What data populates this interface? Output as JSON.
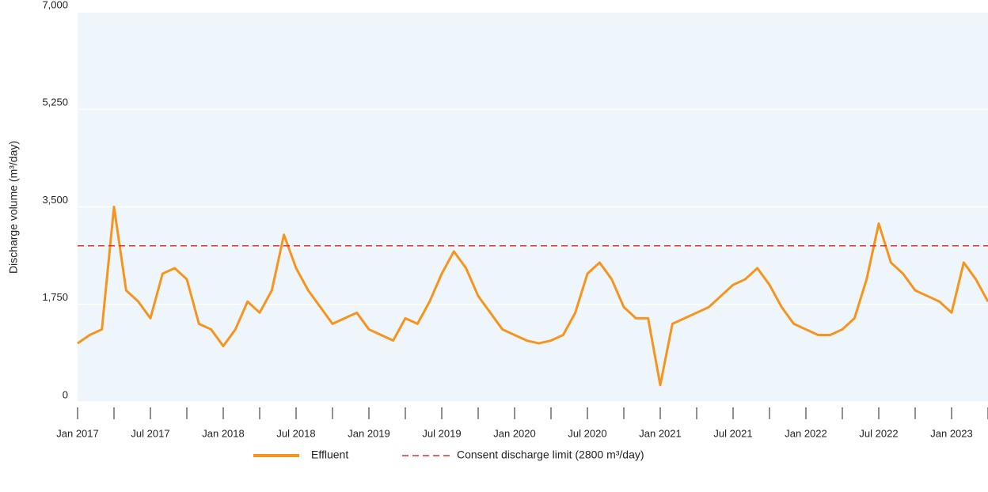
{
  "chart_data": {
    "type": "line",
    "ylabel": "Discharge volume (m³/day)",
    "x": [
      "2017-01",
      "2017-02",
      "2017-03",
      "2017-04",
      "2017-05",
      "2017-06",
      "2017-07",
      "2017-08",
      "2017-09",
      "2017-10",
      "2017-11",
      "2017-12",
      "2018-01",
      "2018-02",
      "2018-03",
      "2018-04",
      "2018-05",
      "2018-06",
      "2018-07",
      "2018-08",
      "2018-09",
      "2018-10",
      "2018-11",
      "2018-12",
      "2019-01",
      "2019-02",
      "2019-03",
      "2019-04",
      "2019-05",
      "2019-06",
      "2019-07",
      "2019-08",
      "2019-09",
      "2019-10",
      "2019-11",
      "2019-12",
      "2020-01",
      "2020-02",
      "2020-03",
      "2020-04",
      "2020-05",
      "2020-06",
      "2020-07",
      "2020-08",
      "2020-09",
      "2020-10",
      "2020-11",
      "2020-12",
      "2021-01",
      "2021-02",
      "2021-03",
      "2021-04",
      "2021-05",
      "2021-06",
      "2021-07",
      "2021-08",
      "2021-09",
      "2021-10",
      "2021-11",
      "2021-12",
      "2022-01",
      "2022-02",
      "2022-03",
      "2022-04",
      "2022-05",
      "2022-06",
      "2022-07",
      "2022-08",
      "2022-09",
      "2022-10",
      "2022-11",
      "2022-12",
      "2023-01",
      "2023-02",
      "2023-03",
      "2023-04"
    ],
    "series": [
      {
        "name": "Effluent",
        "color": "#f7941d",
        "values": [
          1050,
          1200,
          1300,
          3500,
          2000,
          1800,
          1500,
          2300,
          2400,
          2200,
          1400,
          1300,
          1000,
          1300,
          1800,
          1600,
          2000,
          3000,
          2400,
          2000,
          1700,
          1400,
          1500,
          1600,
          1300,
          1200,
          1100,
          1500,
          1400,
          1800,
          2300,
          2700,
          2400,
          1900,
          1600,
          1300,
          1200,
          1100,
          1050,
          1100,
          1200,
          1600,
          2300,
          2500,
          2200,
          1700,
          1500,
          1500,
          300,
          1400,
          1500,
          1600,
          1700,
          1900,
          2100,
          2200,
          2400,
          2100,
          1700,
          1400,
          1300,
          1200,
          1200,
          1300,
          1500,
          2200,
          3200,
          2500,
          2300,
          2000,
          1900,
          1800,
          1600,
          2500,
          2200,
          1800
        ]
      }
    ],
    "reference_line": {
      "value": 2800,
      "label": "Consent discharge limit (2800 m³/day)",
      "color": "#e2312b"
    },
    "xlim": [
      "2017-01",
      "2023-04"
    ],
    "xticks": [
      {
        "value": "2017-01",
        "label": "Jan 2017"
      },
      {
        "value": "2017-07",
        "label": "Jul 2017"
      },
      {
        "value": "2018-01",
        "label": "Jan 2018"
      },
      {
        "value": "2018-07",
        "label": "Jul 2018"
      },
      {
        "value": "2019-01",
        "label": "Jan 2019"
      },
      {
        "value": "2019-07",
        "label": "Jul 2019"
      },
      {
        "value": "2020-01",
        "label": "Jan 2020"
      },
      {
        "value": "2020-07",
        "label": "Jul 2020"
      },
      {
        "value": "2021-01",
        "label": "Jan 2021"
      },
      {
        "value": "2021-07",
        "label": "Jul 2021"
      },
      {
        "value": "2022-01",
        "label": "Jan 2022"
      },
      {
        "value": "2022-07",
        "label": "Jul 2022"
      },
      {
        "value": "2023-01",
        "label": "Jan 2023"
      }
    ],
    "xminorticks": [
      "2017-04",
      "2017-10",
      "2018-04",
      "2018-10",
      "2019-04",
      "2019-10",
      "2020-04",
      "2020-10",
      "2021-04",
      "2021-10",
      "2022-04",
      "2022-10",
      "2023-04"
    ],
    "ylim": [
      0,
      7000
    ],
    "yticks": [
      0,
      {
        "value": 1750,
        "label": "1,750"
      },
      {
        "value": 3500,
        "label": "3,500"
      },
      {
        "value": 5250,
        "label": "5,250"
      },
      {
        "value": 7000,
        "label": "7,000"
      }
    ],
    "grid": true
  }
}
